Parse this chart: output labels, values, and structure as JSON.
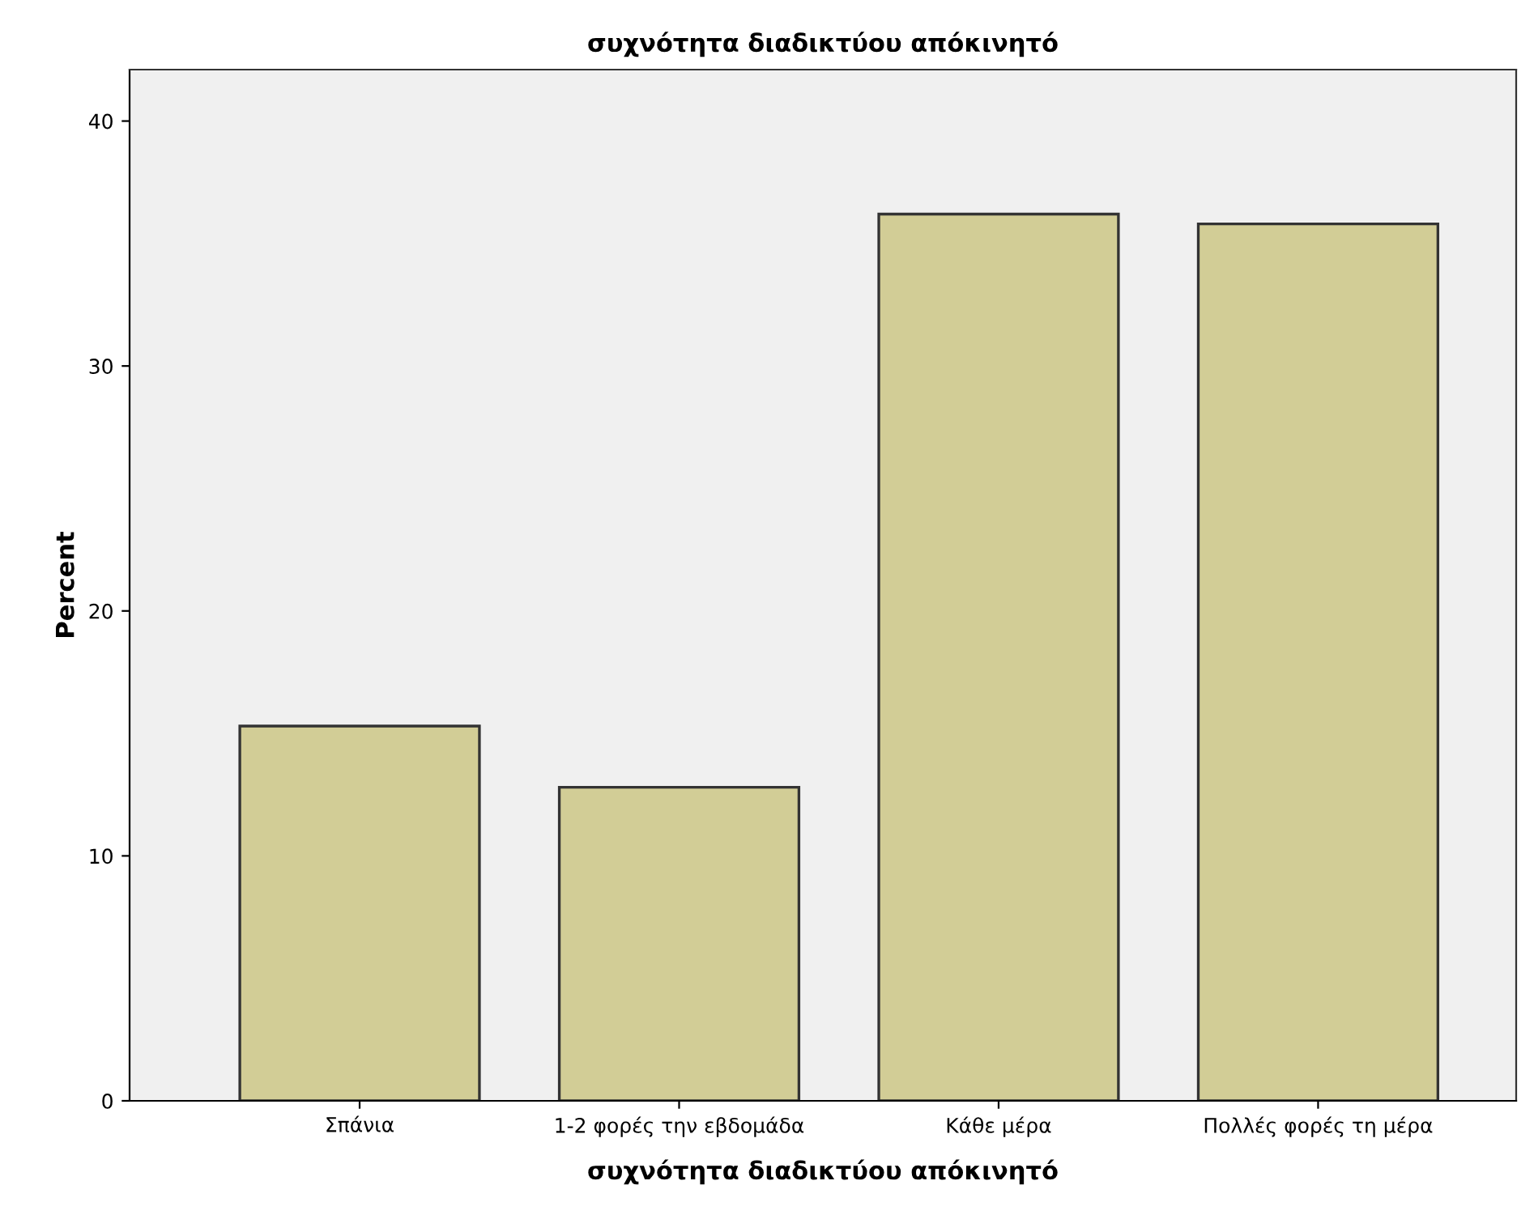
{
  "chart_data": {
    "type": "bar",
    "title": "συχνότητα διαδικτύου απόκινητό",
    "xlabel": "συχνότητα διαδικτύου απόκινητό",
    "ylabel": "Percent",
    "categories": [
      "Σπάνια",
      "1-2 φορές την εβδομάδα",
      "Κάθε μέρα",
      "Πολλές φορές τη μέρα"
    ],
    "values": [
      15.3,
      12.8,
      36.2,
      35.8
    ],
    "color": "#d2cd96",
    "ylim": [
      0,
      42.1
    ],
    "yticks": [
      0,
      10,
      20,
      30,
      40
    ],
    "grid": false,
    "legend": false
  }
}
